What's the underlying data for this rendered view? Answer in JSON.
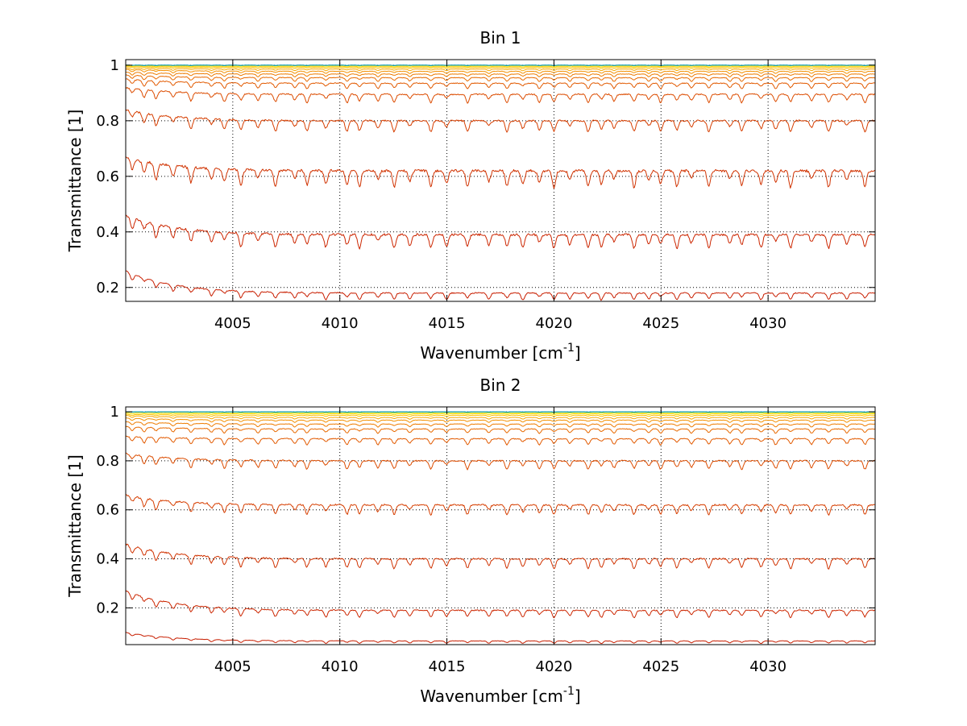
{
  "chart_data": [
    {
      "type": "line",
      "title": "Bin 1",
      "xlabel": "Wavenumber [cm",
      "xlabel_superscript": "-1",
      "xlabel_suffix": "]",
      "ylabel": "Transmittance [1]",
      "xlim": [
        4000,
        4035
      ],
      "ylim": [
        0.15,
        1.02
      ],
      "xticks": [
        4005,
        4010,
        4015,
        4020,
        4025,
        4030
      ],
      "xtick_labels": [
        "4005",
        "4010",
        "4015",
        "4020",
        "4025",
        "4030"
      ],
      "yticks": [
        0.2,
        0.4,
        0.6,
        0.8,
        1
      ],
      "ytick_labels": [
        "0.2",
        "0.4",
        "0.6",
        "0.8",
        "1"
      ],
      "grid": true,
      "series": [
        {
          "start": 0.26,
          "base": 0.18,
          "depth": 0.025,
          "color": "#c81e00"
        },
        {
          "start": 0.46,
          "base": 0.39,
          "depth": 0.05,
          "color": "#cc2600"
        },
        {
          "start": 0.67,
          "base": 0.62,
          "depth": 0.06,
          "color": "#d03200"
        },
        {
          "start": 0.84,
          "base": 0.8,
          "depth": 0.04,
          "color": "#d63e00"
        },
        {
          "start": 0.92,
          "base": 0.895,
          "depth": 0.03,
          "color": "#dc4c00"
        },
        {
          "start": 0.95,
          "base": 0.935,
          "depth": 0.02,
          "color": "#e25a00"
        },
        {
          "start": 0.965,
          "base": 0.955,
          "depth": 0.014,
          "color": "#e86a00"
        },
        {
          "start": 0.975,
          "base": 0.968,
          "depth": 0.01,
          "color": "#ee7c00"
        },
        {
          "start": 0.985,
          "base": 0.978,
          "depth": 0.008,
          "color": "#f49000"
        },
        {
          "start": 0.99,
          "base": 0.986,
          "depth": 0.006,
          "color": "#f8a800"
        },
        {
          "start": 0.995,
          "base": 0.992,
          "depth": 0.004,
          "color": "#fcc000"
        },
        {
          "start": 0.998,
          "base": 0.996,
          "depth": 0.003,
          "color": "#ffd800"
        },
        {
          "start": 1.0,
          "base": 0.999,
          "depth": 0.002,
          "color": "#e8e800"
        },
        {
          "start": 1.0,
          "base": 1.0,
          "depth": 0.0015,
          "color": "#a0e040"
        },
        {
          "start": 1.0,
          "base": 1.0,
          "depth": 0.001,
          "color": "#40c8a0"
        },
        {
          "start": 1.0,
          "base": 1.0,
          "depth": 0.001,
          "color": "#0090c8"
        }
      ]
    },
    {
      "type": "line",
      "title": "Bin 2",
      "xlabel": "Wavenumber [cm",
      "xlabel_superscript": "-1",
      "xlabel_suffix": "]",
      "ylabel": "Transmittance [1]",
      "xlim": [
        4000,
        4035
      ],
      "ylim": [
        0.05,
        1.02
      ],
      "xticks": [
        4005,
        4010,
        4015,
        4020,
        4025,
        4030
      ],
      "xtick_labels": [
        "4005",
        "4010",
        "4015",
        "4020",
        "4025",
        "4030"
      ],
      "yticks": [
        0.2,
        0.4,
        0.6,
        0.8,
        1
      ],
      "ytick_labels": [
        "0.2",
        "0.4",
        "0.6",
        "0.8",
        "1"
      ],
      "grid": true,
      "series": [
        {
          "start": 0.1,
          "base": 0.065,
          "depth": 0.01,
          "color": "#c81e00"
        },
        {
          "start": 0.27,
          "base": 0.19,
          "depth": 0.03,
          "color": "#cc2600"
        },
        {
          "start": 0.46,
          "base": 0.4,
          "depth": 0.04,
          "color": "#d03200"
        },
        {
          "start": 0.66,
          "base": 0.62,
          "depth": 0.04,
          "color": "#d63e00"
        },
        {
          "start": 0.83,
          "base": 0.8,
          "depth": 0.035,
          "color": "#dc4c00"
        },
        {
          "start": 0.9,
          "base": 0.89,
          "depth": 0.025,
          "color": "#e25a00"
        },
        {
          "start": 0.94,
          "base": 0.93,
          "depth": 0.018,
          "color": "#e86a00"
        },
        {
          "start": 0.96,
          "base": 0.95,
          "depth": 0.012,
          "color": "#ee7c00"
        },
        {
          "start": 0.975,
          "base": 0.966,
          "depth": 0.009,
          "color": "#f49000"
        },
        {
          "start": 0.985,
          "base": 0.977,
          "depth": 0.007,
          "color": "#f8a800"
        },
        {
          "start": 0.99,
          "base": 0.986,
          "depth": 0.005,
          "color": "#fcc000"
        },
        {
          "start": 0.995,
          "base": 0.992,
          "depth": 0.004,
          "color": "#ffd800"
        },
        {
          "start": 1.0,
          "base": 0.997,
          "depth": 0.003,
          "color": "#e8e800"
        },
        {
          "start": 1.0,
          "base": 0.999,
          "depth": 0.002,
          "color": "#a0e040"
        },
        {
          "start": 1.0,
          "base": 1.0,
          "depth": 0.0015,
          "color": "#40c8a0"
        },
        {
          "start": 1.0,
          "base": 1.0,
          "depth": 0.001,
          "color": "#0090c8"
        }
      ]
    }
  ]
}
